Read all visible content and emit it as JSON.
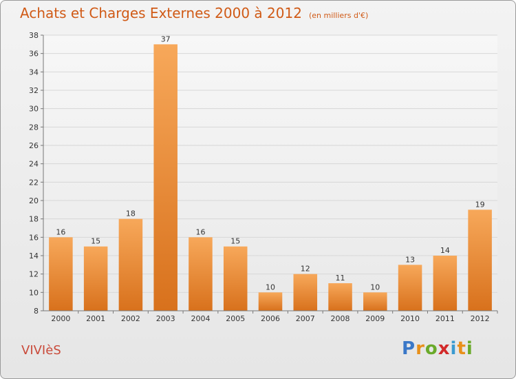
{
  "title": "Achats et Charges Externes 2000 à 2012",
  "subtitle": "(en milliers d'€)",
  "commune": "VIVIèS",
  "logo": {
    "letters": [
      "P",
      "r",
      "o",
      "x",
      "i",
      "t",
      "i"
    ],
    "colors": [
      "#3a78c8",
      "#e8901a",
      "#6aaa2a",
      "#d22a2a",
      "#3a9ad0",
      "#e8901a",
      "#6aaa2a"
    ]
  },
  "colors": {
    "bar_top": "#f7a85a",
    "bar_bottom": "#d8711c",
    "grid": "#d7d7d7",
    "axis": "#777777"
  },
  "chart_data": {
    "type": "bar",
    "title": "Achats et Charges Externes 2000 à 2012",
    "ylabel": "(en milliers d'€)",
    "xlabel": "",
    "categories": [
      "2000",
      "2001",
      "2002",
      "2003",
      "2004",
      "2005",
      "2006",
      "2007",
      "2008",
      "2009",
      "2010",
      "2011",
      "2012"
    ],
    "values": [
      16,
      15,
      18,
      37,
      16,
      15,
      10,
      12,
      11,
      10,
      13,
      14,
      19
    ],
    "ylim": [
      8,
      38
    ],
    "yticks": [
      8,
      10,
      12,
      14,
      16,
      18,
      20,
      22,
      24,
      26,
      28,
      30,
      32,
      34,
      36,
      38
    ],
    "grid": true
  }
}
